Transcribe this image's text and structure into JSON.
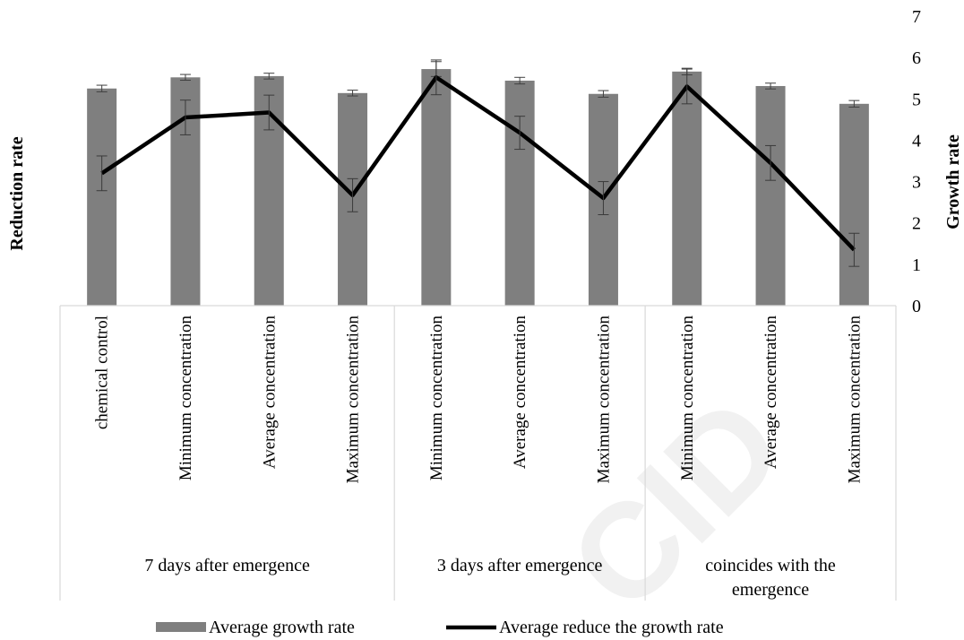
{
  "chart_data": {
    "type": "bar",
    "y_left_label": "Reduction rate",
    "y_right_label": "Growth rate",
    "y_right_ticks": [
      "0",
      "1",
      "2",
      "3",
      "4",
      "5",
      "6",
      "7"
    ],
    "ylim": [
      0,
      7
    ],
    "categories": [
      "chemical control",
      "Minimum concentration",
      "Average concentration",
      "Maximum concentration",
      "Minimum concentration",
      "Average concentration",
      "Maximum concentration",
      "Minimum concentration",
      "Average concentration",
      "Maximum concentration"
    ],
    "groups": [
      {
        "label": "7 days after emergence",
        "start": 0,
        "end": 3
      },
      {
        "label": "3 days after emergence",
        "start": 4,
        "end": 6
      },
      {
        "label": "coincides with  the emergence",
        "start": 7,
        "end": 9
      }
    ],
    "series": [
      {
        "name": "Average growth rate",
        "kind": "bar",
        "color": "#7f7f7f",
        "values": [
          5.25,
          5.52,
          5.55,
          5.14,
          5.72,
          5.44,
          5.12,
          5.66,
          5.31,
          4.88
        ],
        "errors": [
          0.08,
          0.07,
          0.07,
          0.07,
          0.18,
          0.08,
          0.08,
          0.08,
          0.07,
          0.08
        ]
      },
      {
        "name": "Average reduce the growth rate",
        "kind": "line",
        "color": "#000000",
        "values": [
          3.2,
          4.55,
          4.67,
          2.67,
          5.52,
          4.18,
          2.6,
          5.3,
          3.45,
          1.35
        ],
        "errors": [
          0.42,
          0.42,
          0.42,
          0.4,
          0.42,
          0.4,
          0.4,
          0.42,
          0.42,
          0.4
        ]
      }
    ],
    "watermark": "CID"
  }
}
